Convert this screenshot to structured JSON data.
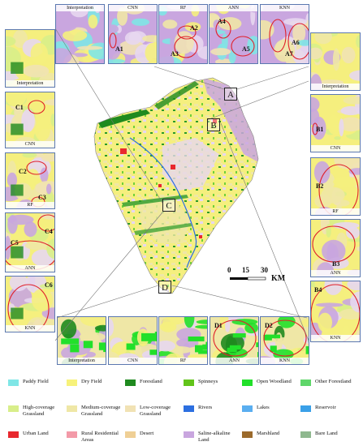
{
  "top_panels": [
    {
      "label": "Interpretation",
      "marks": []
    },
    {
      "label": "CNN",
      "marks": [
        "A1"
      ]
    },
    {
      "label": "RF",
      "marks": [
        "A2",
        "A3"
      ]
    },
    {
      "label": "ANN",
      "marks": [
        "A4",
        "A5"
      ]
    },
    {
      "label": "KNN",
      "marks": [
        "A6",
        "A7"
      ]
    }
  ],
  "left_panels": [
    {
      "label": "Interpretation",
      "marks": []
    },
    {
      "label": "CNN",
      "marks": [
        "C1"
      ]
    },
    {
      "label": "RF",
      "marks": [
        "C2",
        "C3"
      ]
    },
    {
      "label": "ANN",
      "marks": [
        "C4",
        "C5"
      ]
    },
    {
      "label": "KNN",
      "marks": [
        "C6"
      ]
    }
  ],
  "right_panels": [
    {
      "label": "Interpretation",
      "marks": []
    },
    {
      "label": "CNN",
      "marks": [
        "B1"
      ]
    },
    {
      "label": "RF",
      "marks": [
        "B2"
      ]
    },
    {
      "label": "ANN",
      "marks": [
        "B3"
      ]
    },
    {
      "label": "KNN",
      "marks": [
        "B4"
      ]
    }
  ],
  "bottom_panels": [
    {
      "label": "Interpretation",
      "marks": []
    },
    {
      "label": "CNN",
      "marks": []
    },
    {
      "label": "RF",
      "marks": []
    },
    {
      "label": "ANN",
      "marks": [
        "D1"
      ]
    },
    {
      "label": "KNN",
      "marks": [
        "D2"
      ]
    }
  ],
  "zones": [
    "A",
    "B",
    "C",
    "D"
  ],
  "scale_bar": {
    "ticks": [
      "0",
      "15",
      "30"
    ],
    "unit": "KM"
  },
  "legend": [
    {
      "label": "Paddy Field",
      "color": "#7fe6e6"
    },
    {
      "label": "Dry Field",
      "color": "#f7f27a"
    },
    {
      "label": "Forestland",
      "color": "#1f8a1f"
    },
    {
      "label": "Spinneys",
      "color": "#62c41a"
    },
    {
      "label": "Open Woodland",
      "color": "#22e02a"
    },
    {
      "label": "Other Forestland",
      "color": "#5fd66a"
    },
    {
      "label": "High-coverage Grassland",
      "color": "#d8ee8a"
    },
    {
      "label": "Medium-coverage Grassland",
      "color": "#efe7a6"
    },
    {
      "label": "Low-coverage Grassland",
      "color": "#f1e2b4"
    },
    {
      "label": "Rivers",
      "color": "#2c6fe0"
    },
    {
      "label": "Lakes",
      "color": "#5aaef0"
    },
    {
      "label": "Reservoir",
      "color": "#3aa0e8"
    },
    {
      "label": "Urban Land",
      "color": "#e8282e"
    },
    {
      "label": "Rural Residential Areas",
      "color": "#f39aa8"
    },
    {
      "label": "Desert",
      "color": "#efcf95"
    },
    {
      "label": "Saline-alkaline Land",
      "color": "#c9a6df"
    },
    {
      "label": "Marshland",
      "color": "#9b6a2c"
    },
    {
      "label": "Bare Land",
      "color": "#8fb88f"
    }
  ]
}
